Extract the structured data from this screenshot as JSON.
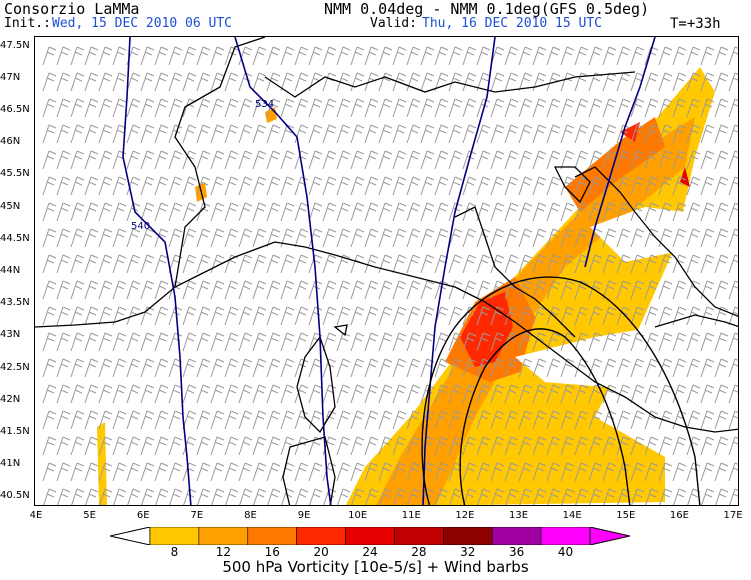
{
  "header": {
    "organization": "Consorzio LaMMa",
    "init_label": "Init.:",
    "init_value": "Wed, 15 DEC 2010  06 UTC",
    "model": "NMM 0.04deg - NMM 0.1deg(GFS 0.5deg)",
    "valid_label": "Valid:",
    "valid_value": "Thu, 16 DEC 2010  15 UTC",
    "lead_time": "T=+33h"
  },
  "map": {
    "lat_labels": [
      "47.5N",
      "47N",
      "46.5N",
      "46N",
      "45.5N",
      "45N",
      "44.5N",
      "44N",
      "43.5N",
      "43N",
      "42.5N",
      "42N",
      "41.5N",
      "41N",
      "40.5N"
    ],
    "lon_labels": [
      "4E",
      "5E",
      "6E",
      "7E",
      "8E",
      "9E",
      "10E",
      "11E",
      "12E",
      "13E",
      "14E",
      "15E",
      "16E",
      "17E"
    ],
    "lat_range": [
      40.35,
      47.65
    ],
    "lon_range": [
      4,
      17
    ],
    "contour_labels": [
      "534",
      "540"
    ],
    "colors": {
      "contour": "#000080",
      "coast": "#000000",
      "barb": "#9a9a9a"
    }
  },
  "legend": {
    "labels": [
      "8",
      "12",
      "16",
      "20",
      "24",
      "28",
      "32",
      "36",
      "40"
    ],
    "colors": [
      "#ffc800",
      "#ffa000",
      "#ff7800",
      "#ff2800",
      "#e60000",
      "#c00000",
      "#8c0000",
      "#a000a0",
      "#ff00ff"
    ],
    "caption": "500 hPa Vorticity [10e-5/s] + Wind barbs"
  }
}
